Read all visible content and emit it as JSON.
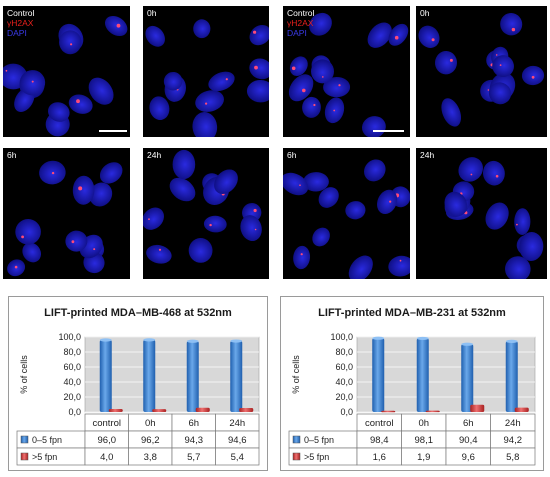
{
  "micrographs": [
    {
      "group": "left",
      "panels": [
        {
          "time_label": "Control",
          "legend": [
            "γH2AX",
            "DAPI"
          ],
          "scale_bar": true
        },
        {
          "time_label": "0h"
        },
        {
          "time_label": "6h"
        },
        {
          "time_label": "24h"
        }
      ]
    },
    {
      "group": "right",
      "panels": [
        {
          "time_label": "Control",
          "legend": [
            "γH2AX",
            "DAPI"
          ],
          "scale_bar": true
        },
        {
          "time_label": "0h"
        },
        {
          "time_label": "6h"
        },
        {
          "time_label": "24h"
        }
      ]
    }
  ],
  "colors": {
    "nucleus": "#2020c8",
    "foci": "#e0204a",
    "bar_low": "#3d7fd0",
    "bar_high": "#d23a3a"
  },
  "chart_data": [
    {
      "type": "bar",
      "title": "LIFT-printed MDA–MB-468 at 532nm",
      "ylabel": "% of cells",
      "ylim": [
        0,
        100
      ],
      "yticks": [
        "0,0",
        "20,0",
        "40,0",
        "60,0",
        "80,0",
        "100,0"
      ],
      "categories": [
        "control",
        "0h",
        "6h",
        "24h"
      ],
      "series": [
        {
          "name": "0–5 fpn",
          "values": [
            96.0,
            96.2,
            94.3,
            94.6
          ],
          "labels": [
            "96,0",
            "96,2",
            "94,3",
            "94,6"
          ]
        },
        {
          "name": ">5 fpn",
          "values": [
            4.0,
            3.8,
            5.7,
            5.4
          ],
          "labels": [
            "4,0",
            "3,8",
            "5,7",
            "5,4"
          ]
        }
      ],
      "grid": true,
      "legend": "table-below"
    },
    {
      "type": "bar",
      "title": "LIFT-printed MDA–MB-231 at 532nm",
      "ylabel": "% of cells",
      "ylim": [
        0,
        100
      ],
      "yticks": [
        "0,0",
        "20,0",
        "40,0",
        "60,0",
        "80,0",
        "100,0"
      ],
      "categories": [
        "control",
        "0h",
        "6h",
        "24h"
      ],
      "series": [
        {
          "name": "0–5 fpn",
          "values": [
            98.4,
            98.1,
            90.4,
            94.2
          ],
          "labels": [
            "98,4",
            "98,1",
            "90,4",
            "94,2"
          ]
        },
        {
          "name": ">5 fpn",
          "values": [
            1.6,
            1.9,
            9.6,
            5.8
          ],
          "labels": [
            "1,6",
            "1,9",
            "9,6",
            "5,8"
          ]
        }
      ],
      "grid": true,
      "legend": "table-below"
    }
  ]
}
